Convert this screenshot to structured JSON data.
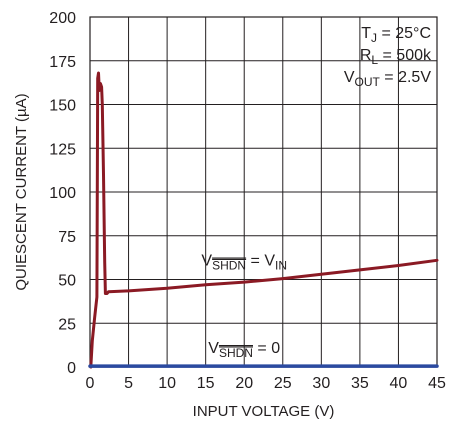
{
  "chart_data": {
    "type": "line",
    "xlabel": "INPUT VOLTAGE (V)",
    "ylabel": "QUIESCENT CURRENT (µA)",
    "xlim": [
      0,
      45
    ],
    "ylim": [
      0,
      200
    ],
    "xticks": [
      0,
      5,
      10,
      15,
      20,
      25,
      30,
      35,
      40,
      45
    ],
    "yticks": [
      0,
      25,
      50,
      75,
      100,
      125,
      150,
      175,
      200
    ],
    "grid": true,
    "conditions": [
      {
        "main": "T",
        "sub": "J",
        "rest": " = 25°C"
      },
      {
        "main": "R",
        "sub": "L",
        "rest": " = 500k"
      },
      {
        "main": "V",
        "sub": "OUT",
        "rest": " = 2.5V"
      }
    ],
    "series": [
      {
        "name": "V_SHDN = V_IN",
        "label": {
          "v": "V",
          "sub": "SHDN",
          "mid": " = V",
          "sub2": "IN",
          "at_x": 20,
          "at_y": 58
        },
        "color": "#8b1a24",
        "x": [
          0.1,
          0.3,
          0.6,
          0.9,
          1.0,
          1.1,
          1.2,
          1.35,
          1.5,
          1.6,
          1.75,
          1.9,
          2.0,
          2.2,
          2.4,
          5,
          10,
          15,
          20,
          25,
          30,
          35,
          40,
          45
        ],
        "y": [
          0,
          15,
          28,
          40,
          165,
          168,
          158,
          162,
          160,
          150,
          110,
          60,
          42,
          42,
          43,
          43.5,
          45,
          47,
          48.5,
          50.5,
          53,
          55.5,
          58,
          61
        ]
      },
      {
        "name": "V_SHDN = 0",
        "label": {
          "v": "V",
          "sub": "SHDN",
          "mid": " = 0",
          "sub2": "",
          "at_x": 20,
          "at_y": 8
        },
        "color": "#2b4aa0",
        "x": [
          0,
          45
        ],
        "y": [
          0.5,
          0.5
        ]
      }
    ]
  }
}
